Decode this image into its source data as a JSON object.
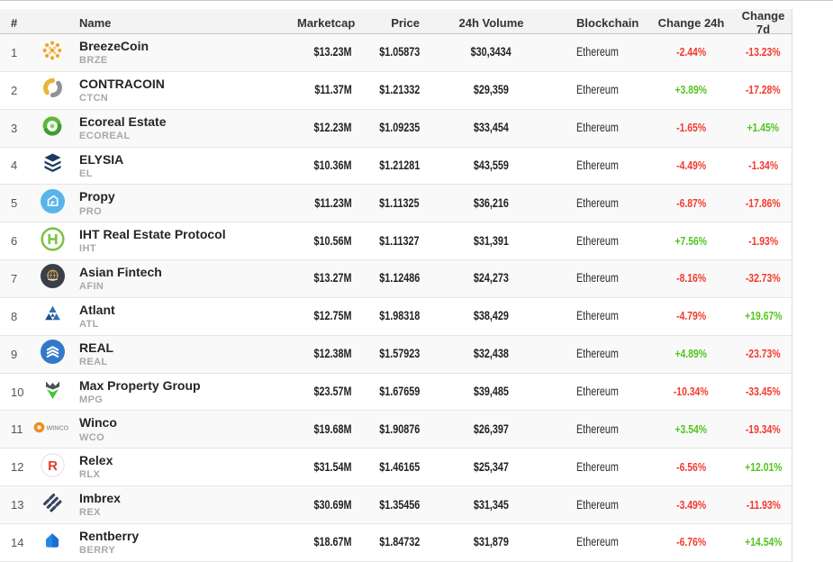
{
  "table": {
    "columns": [
      {
        "key": "rank",
        "label": "#"
      },
      {
        "key": "name",
        "label": "Name"
      },
      {
        "key": "marketcap",
        "label": "Marketcap"
      },
      {
        "key": "price",
        "label": "Price"
      },
      {
        "key": "volume",
        "label": "24h Volume"
      },
      {
        "key": "blockchain",
        "label": "Blockchain"
      },
      {
        "key": "change24h",
        "label": "Change 24h"
      },
      {
        "key": "change7d",
        "label": "Change 7d"
      }
    ],
    "rows": [
      {
        "rank": "1",
        "name": "BreezeCoin",
        "symbol": "BRZE",
        "icon": "breezecoin-icon",
        "marketcap": "$13.23M",
        "price": "$1.05873",
        "volume": "$30,3434",
        "blockchain": "Ethereum",
        "change24h": "-2.44%",
        "change7d": "-13.23%"
      },
      {
        "rank": "2",
        "name": "CONTRACOIN",
        "symbol": "CTCN",
        "icon": "contracoin-icon",
        "marketcap": "$11.37M",
        "price": "$1.21332",
        "volume": "$29,359",
        "blockchain": "Ethereum",
        "change24h": "+3.89%",
        "change7d": "-17.28%"
      },
      {
        "rank": "3",
        "name": "Ecoreal Estate",
        "symbol": "ECOREAL",
        "icon": "ecoreal-icon",
        "marketcap": "$12.23M",
        "price": "$1.09235",
        "volume": "$33,454",
        "blockchain": "Ethereum",
        "change24h": "-1.65%",
        "change7d": "+1.45%"
      },
      {
        "rank": "4",
        "name": "ELYSIA",
        "symbol": "EL",
        "icon": "elysia-icon",
        "marketcap": "$10.36M",
        "price": "$1.21281",
        "volume": "$43,559",
        "blockchain": "Ethereum",
        "change24h": "-4.49%",
        "change7d": "-1.34%"
      },
      {
        "rank": "5",
        "name": "Propy",
        "symbol": "PRO",
        "icon": "propy-icon",
        "marketcap": "$11.23M",
        "price": "$1.11325",
        "volume": "$36,216",
        "blockchain": "Ethereum",
        "change24h": "-6.87%",
        "change7d": "-17.86%"
      },
      {
        "rank": "6",
        "name": "IHT Real Estate Protocol",
        "symbol": "IHT",
        "icon": "iht-icon",
        "marketcap": "$10.56M",
        "price": "$1.11327",
        "volume": "$31,391",
        "blockchain": "Ethereum",
        "change24h": "+7.56%",
        "change7d": "-1.93%"
      },
      {
        "rank": "7",
        "name": "Asian Fintech",
        "symbol": "AFIN",
        "icon": "asian-fintech-icon",
        "marketcap": "$13.27M",
        "price": "$1.12486",
        "volume": "$24,273",
        "blockchain": "Ethereum",
        "change24h": "-8.16%",
        "change7d": "-32.73%"
      },
      {
        "rank": "8",
        "name": "Atlant",
        "symbol": "ATL",
        "icon": "atlant-icon",
        "marketcap": "$12.75M",
        "price": "$1.98318",
        "volume": "$38,429",
        "blockchain": "Ethereum",
        "change24h": "-4.79%",
        "change7d": "+19.67%"
      },
      {
        "rank": "9",
        "name": "REAL",
        "symbol": "REAL",
        "icon": "real-icon",
        "marketcap": "$12.38M",
        "price": "$1.57923",
        "volume": "$32,438",
        "blockchain": "Ethereum",
        "change24h": "+4.89%",
        "change7d": "-23.73%"
      },
      {
        "rank": "10",
        "name": "Max Property Group",
        "symbol": "MPG",
        "icon": "max-property-group-icon",
        "marketcap": "$23.57M",
        "price": "$1.67659",
        "volume": "$39,485",
        "blockchain": "Ethereum",
        "change24h": "-10.34%",
        "change7d": "-33.45%"
      },
      {
        "rank": "11",
        "name": "Winco",
        "symbol": "WCO",
        "icon": "winco-icon",
        "marketcap": "$19.68M",
        "price": "$1.90876",
        "volume": "$26,397",
        "blockchain": "Ethereum",
        "change24h": "+3.54%",
        "change7d": "-19.34%"
      },
      {
        "rank": "12",
        "name": "Relex",
        "symbol": "RLX",
        "icon": "relex-icon",
        "marketcap": "$31.54M",
        "price": "$1.46165",
        "volume": "$25,347",
        "blockchain": "Ethereum",
        "change24h": "-6.56%",
        "change7d": "+12.01%"
      },
      {
        "rank": "13",
        "name": "Imbrex",
        "symbol": "REX",
        "icon": "imbrex-icon",
        "marketcap": "$30.69M",
        "price": "$1.35456",
        "volume": "$31,345",
        "blockchain": "Ethereum",
        "change24h": "-3.49%",
        "change7d": "-11.93%"
      },
      {
        "rank": "14",
        "name": "Rentberry",
        "symbol": "BERRY",
        "icon": "rentberry-icon",
        "marketcap": "$18.67M",
        "price": "$1.84732",
        "volume": "$31,879",
        "blockchain": "Ethereum",
        "change24h": "-6.76%",
        "change7d": "+14.54%"
      }
    ]
  },
  "colors": {
    "positive": "#53c41e",
    "negative": "#f4392e",
    "header_bg": "#f3f3f3"
  }
}
